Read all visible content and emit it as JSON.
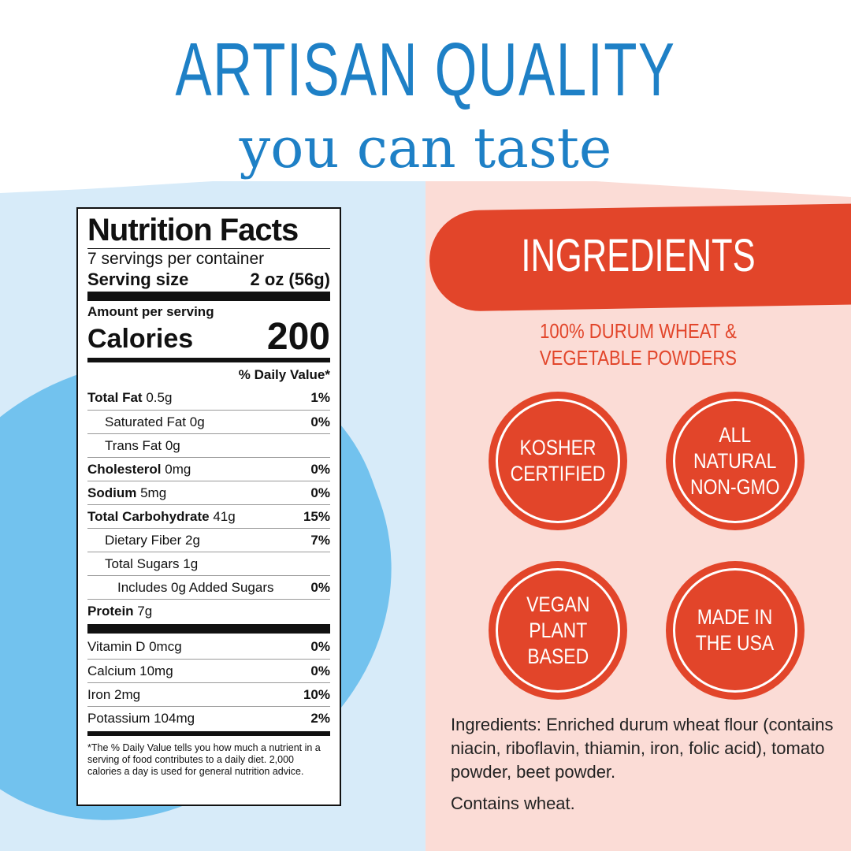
{
  "header": {
    "title": "ARTISAN QUALITY",
    "subtitle": "you can taste"
  },
  "nutrition": {
    "heading": "Nutrition Facts",
    "servings": "7 servings per container",
    "serving_size_label": "Serving size",
    "serving_size_value": "2 oz (56g)",
    "amount_label": "Amount per serving",
    "calories_label": "Calories",
    "calories_value": "200",
    "dv_header": "% Daily Value*",
    "rows": [
      {
        "name": "Total Fat",
        "amount": "0.5g",
        "dv": "1%"
      },
      {
        "name": "Saturated Fat",
        "amount": "0g",
        "dv": "0%"
      },
      {
        "name": "Trans Fat",
        "amount": "0g",
        "dv": ""
      },
      {
        "name": "Cholesterol",
        "amount": "0mg",
        "dv": "0%"
      },
      {
        "name": "Sodium",
        "amount": "5mg",
        "dv": "0%"
      },
      {
        "name": "Total Carbohydrate",
        "amount": "41g",
        "dv": "15%"
      },
      {
        "name": "Dietary Fiber",
        "amount": "2g",
        "dv": "7%"
      },
      {
        "name": "Total Sugars",
        "amount": "1g",
        "dv": ""
      },
      {
        "name": "Includes 0g Added Sugars",
        "amount": "",
        "dv": "0%"
      },
      {
        "name": "Protein",
        "amount": "7g",
        "dv": ""
      }
    ],
    "vitamins": [
      {
        "text": "Vitamin D 0mcg",
        "dv": "0%"
      },
      {
        "text": "Calcium 10mg",
        "dv": "0%"
      },
      {
        "text": "Iron 2mg",
        "dv": "10%"
      },
      {
        "text": "Potassium 104mg",
        "dv": "2%"
      }
    ],
    "footnote": "*The % Daily Value tells you how much a nutrient in a serving of food contributes to a daily diet. 2,000 calories a day is used for general nutrition advice."
  },
  "ingredients": {
    "banner": "INGREDIENTS",
    "subtitle": "100% DURUM WHEAT &\nVEGETABLE POWDERS",
    "badges": [
      "KOSHER\nCERTIFIED",
      "ALL\nNATURAL\nNON-GMO",
      "VEGAN\nPLANT\nBASED",
      "MADE IN\nTHE USA"
    ],
    "text": "Ingredients: Enriched durum wheat flour (contains niacin, riboflavin, thiamin, iron, folic acid), tomato powder, beet powder.",
    "allergen": "Contains wheat."
  },
  "colors": {
    "blue": "#1e80c6",
    "red": "#e2452a",
    "light_blue": "#d7ebf9",
    "pink": "#fbdcd6"
  }
}
